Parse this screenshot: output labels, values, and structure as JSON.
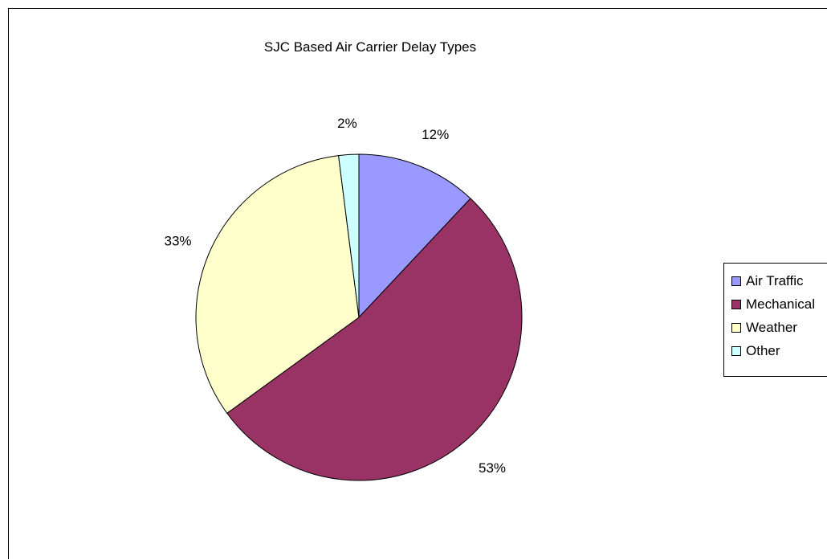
{
  "chart_data": {
    "type": "pie",
    "title": "SJC Based Air Carrier Delay Types",
    "categories": [
      "Air Traffic",
      "Mechanical",
      "Weather",
      "Other"
    ],
    "values": [
      12,
      53,
      33,
      2
    ],
    "labels": [
      "12%",
      "53%",
      "33%",
      "2%"
    ],
    "colors": [
      "#9999ff",
      "#993366",
      "#ffffcc",
      "#ccffff"
    ],
    "legend_position": "right"
  }
}
